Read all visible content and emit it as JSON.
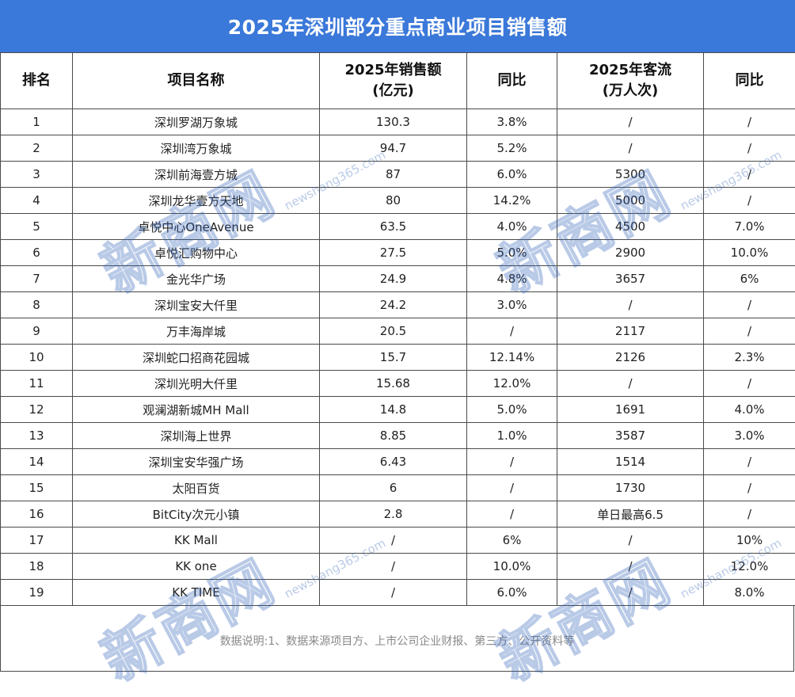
{
  "title": "2025年深圳部分重点商业项目销售额",
  "headers": {
    "rank": "排名",
    "name": "项目名称",
    "sales_line1": "2025年销售额",
    "sales_line2": "(亿元)",
    "sales_yoy": "同比",
    "traffic_line1": "2025年客流",
    "traffic_line2": "(万人次)",
    "traffic_yoy": "同比"
  },
  "rows": [
    {
      "rank": "1",
      "name": "深圳罗湖万象城",
      "sales": "130.3",
      "sales_yoy": "3.8%",
      "traffic": "/",
      "traffic_yoy": "/"
    },
    {
      "rank": "2",
      "name": "深圳湾万象城",
      "sales": "94.7",
      "sales_yoy": "5.2%",
      "traffic": "/",
      "traffic_yoy": "/"
    },
    {
      "rank": "3",
      "name": "深圳前海壹方城",
      "sales": "87",
      "sales_yoy": "6.0%",
      "traffic": "5300",
      "traffic_yoy": "/"
    },
    {
      "rank": "4",
      "name": "深圳龙华壹方天地",
      "sales": "80",
      "sales_yoy": "14.2%",
      "traffic": "5000",
      "traffic_yoy": "/"
    },
    {
      "rank": "5",
      "name": "卓悦中心OneAvenue",
      "sales": "63.5",
      "sales_yoy": "4.0%",
      "traffic": "4500",
      "traffic_yoy": "7.0%"
    },
    {
      "rank": "6",
      "name": "卓悦汇购物中心",
      "sales": "27.5",
      "sales_yoy": "5.0%",
      "traffic": "2900",
      "traffic_yoy": "10.0%"
    },
    {
      "rank": "7",
      "name": "金光华广场",
      "sales": "24.9",
      "sales_yoy": "4.8%",
      "traffic": "3657",
      "traffic_yoy": "6%"
    },
    {
      "rank": "8",
      "name": "深圳宝安大仟里",
      "sales": "24.2",
      "sales_yoy": "3.0%",
      "traffic": "/",
      "traffic_yoy": "/"
    },
    {
      "rank": "9",
      "name": "万丰海岸城",
      "sales": "20.5",
      "sales_yoy": "/",
      "traffic": "2117",
      "traffic_yoy": "/"
    },
    {
      "rank": "10",
      "name": "深圳蛇口招商花园城",
      "sales": "15.7",
      "sales_yoy": "12.14%",
      "traffic": "2126",
      "traffic_yoy": "2.3%"
    },
    {
      "rank": "11",
      "name": "深圳光明大仟里",
      "sales": "15.68",
      "sales_yoy": "12.0%",
      "traffic": "/",
      "traffic_yoy": "/"
    },
    {
      "rank": "12",
      "name": "观澜湖新城MH Mall",
      "sales": "14.8",
      "sales_yoy": "5.0%",
      "traffic": "1691",
      "traffic_yoy": "4.0%"
    },
    {
      "rank": "13",
      "name": "深圳海上世界",
      "sales": "8.85",
      "sales_yoy": "1.0%",
      "traffic": "3587",
      "traffic_yoy": "3.0%"
    },
    {
      "rank": "14",
      "name": "深圳宝安华强广场",
      "sales": "6.43",
      "sales_yoy": "/",
      "traffic": "1514",
      "traffic_yoy": "/"
    },
    {
      "rank": "15",
      "name": "太阳百货",
      "sales": "6",
      "sales_yoy": "/",
      "traffic": "1730",
      "traffic_yoy": "/"
    },
    {
      "rank": "16",
      "name": "BitCity次元小镇",
      "sales": "2.8",
      "sales_yoy": "/",
      "traffic": "单日最高6.5",
      "traffic_yoy": "/"
    },
    {
      "rank": "17",
      "name": "KK Mall",
      "sales": "/",
      "sales_yoy": "6%",
      "traffic": "/",
      "traffic_yoy": "10%"
    },
    {
      "rank": "18",
      "name": "KK one",
      "sales": "/",
      "sales_yoy": "10.0%",
      "traffic": "/",
      "traffic_yoy": "12.0%"
    },
    {
      "rank": "19",
      "name": "KK TIME",
      "sales": "/",
      "sales_yoy": "6.0%",
      "traffic": "/",
      "traffic_yoy": "8.0%"
    }
  ],
  "footer_note": "数据说明:1、数据来源项目方、上市公司企业财报、第三方、公开资料等",
  "watermark": {
    "text": "新商网",
    "url": "newshang365.com"
  },
  "colors": {
    "title_bg": "#3a78d9",
    "watermark": "#2f61b8"
  }
}
